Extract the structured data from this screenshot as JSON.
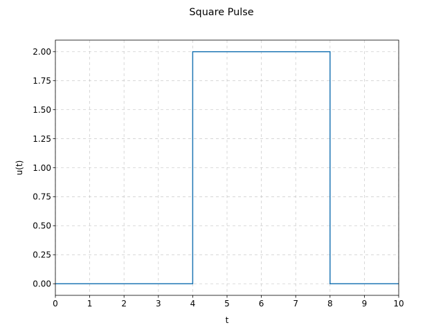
{
  "chart_data": {
    "type": "line",
    "title": "Square Pulse",
    "xlabel": "t",
    "ylabel": "u(t)",
    "xlim": [
      0,
      10
    ],
    "ylim": [
      -0.1,
      2.1
    ],
    "x_ticks": [
      0,
      1,
      2,
      3,
      4,
      5,
      6,
      7,
      8,
      9,
      10
    ],
    "x_tick_labels": [
      "0",
      "1",
      "2",
      "3",
      "4",
      "5",
      "6",
      "7",
      "8",
      "9",
      "10"
    ],
    "y_ticks": [
      0,
      0.25,
      0.5,
      0.75,
      1.0,
      1.25,
      1.5,
      1.75,
      2.0
    ],
    "y_tick_labels": [
      "0.00",
      "0.25",
      "0.50",
      "0.75",
      "1.00",
      "1.25",
      "1.50",
      "1.75",
      "2.00"
    ],
    "grid": true,
    "series": [
      {
        "color": "#1f77b4",
        "x": [
          0,
          4,
          4,
          8,
          8,
          10
        ],
        "y": [
          0,
          0,
          2,
          2,
          0,
          0
        ]
      }
    ]
  }
}
